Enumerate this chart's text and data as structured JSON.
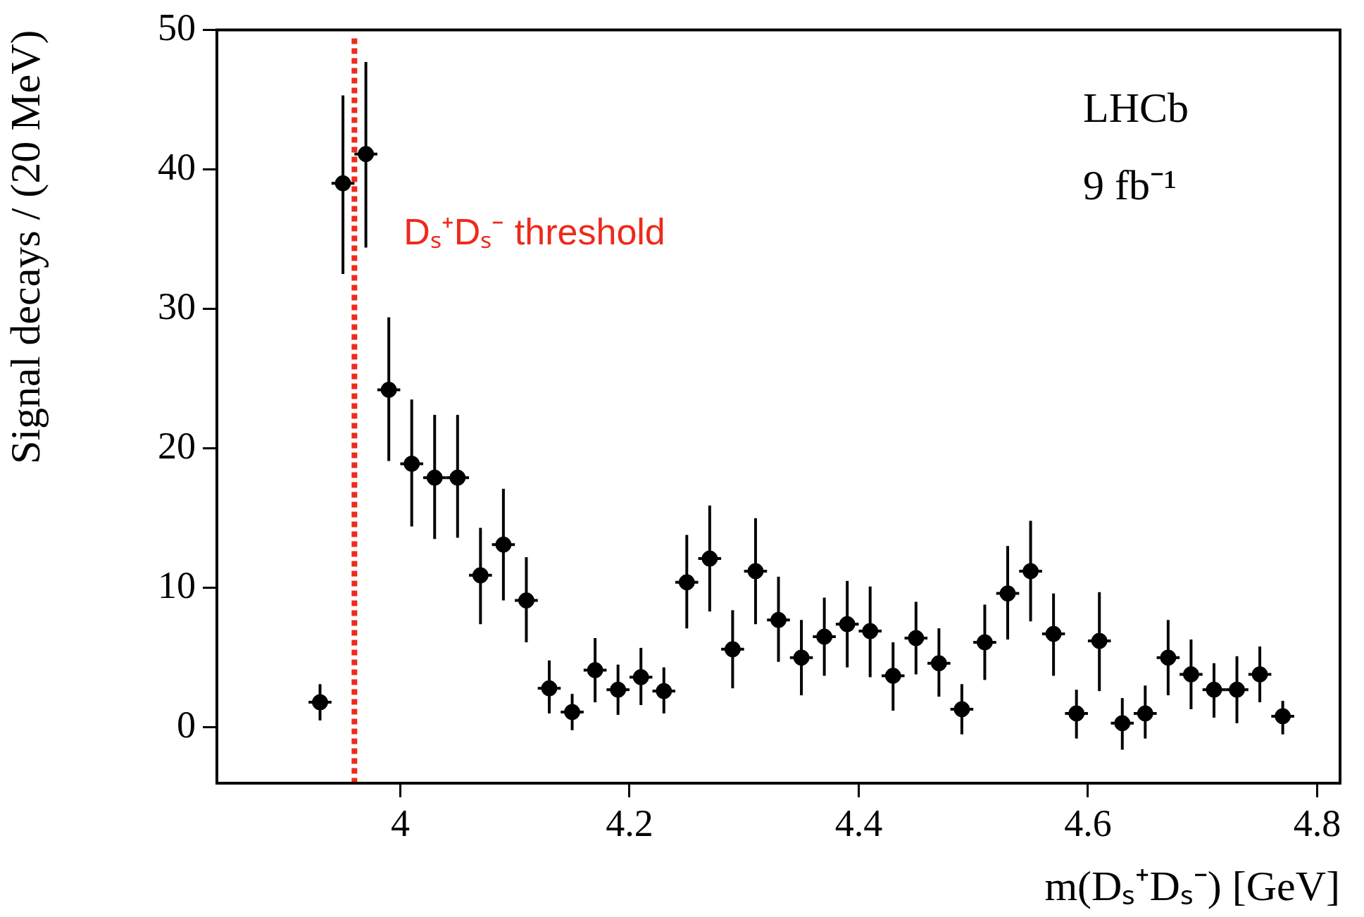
{
  "chart_data": {
    "type": "scatter",
    "xlabel": "m(Dₛ⁺Dₛ⁻) [GeV]",
    "ylabel": "Signal decays / (20 MeV)",
    "annotations": [
      "LHCb",
      "9 fb⁻¹"
    ],
    "x": [
      3.93,
      3.95,
      3.97,
      3.99,
      4.01,
      4.03,
      4.05,
      4.07,
      4.09,
      4.11,
      4.13,
      4.15,
      4.17,
      4.19,
      4.21,
      4.23,
      4.25,
      4.27,
      4.29,
      4.31,
      4.33,
      4.35,
      4.37,
      4.39,
      4.41,
      4.43,
      4.45,
      4.47,
      4.49,
      4.51,
      4.53,
      4.55,
      4.57,
      4.59,
      4.61,
      4.63,
      4.65,
      4.67,
      4.69,
      4.71,
      4.73,
      4.75,
      4.77
    ],
    "values": [
      1.8,
      39,
      41.1,
      24.2,
      18.9,
      17.9,
      17.9,
      10.9,
      13.1,
      9.1,
      2.8,
      1.1,
      4.1,
      2.7,
      3.6,
      2.6,
      10.4,
      12.1,
      5.6,
      11.2,
      7.7,
      5.0,
      6.5,
      7.4,
      6.9,
      3.7,
      6.4,
      4.6,
      1.3,
      6.1,
      9.6,
      11.2,
      6.7,
      1.0,
      6.2,
      0.3,
      1.0,
      5.0,
      3.8,
      2.7,
      2.7,
      3.8,
      0.8
    ],
    "errors": [
      [
        0.5,
        3.1
      ],
      [
        32.5,
        45.3
      ],
      [
        34.4,
        47.7
      ],
      [
        19.1,
        29.4
      ],
      [
        14.4,
        23.5
      ],
      [
        13.5,
        22.4
      ],
      [
        13.6,
        22.4
      ],
      [
        7.4,
        14.3
      ],
      [
        9.1,
        17.1
      ],
      [
        6.1,
        12.2
      ],
      [
        1.0,
        4.8
      ],
      [
        -0.2,
        2.4
      ],
      [
        1.8,
        6.4
      ],
      [
        0.9,
        4.5
      ],
      [
        1.6,
        5.7
      ],
      [
        1.0,
        4.3
      ],
      [
        7.1,
        13.8
      ],
      [
        8.3,
        15.9
      ],
      [
        2.8,
        8.4
      ],
      [
        7.4,
        15.0
      ],
      [
        4.7,
        10.8
      ],
      [
        2.3,
        7.7
      ],
      [
        3.7,
        9.3
      ],
      [
        4.3,
        10.5
      ],
      [
        3.6,
        10.1
      ],
      [
        1.2,
        6.1
      ],
      [
        3.8,
        9.0
      ],
      [
        2.2,
        7.1
      ],
      [
        -0.5,
        3.1
      ],
      [
        3.4,
        8.8
      ],
      [
        6.3,
        13.0
      ],
      [
        7.6,
        14.8
      ],
      [
        3.7,
        9.6
      ],
      [
        -0.8,
        2.7
      ],
      [
        2.6,
        9.7
      ],
      [
        -1.6,
        2.1
      ],
      [
        -0.8,
        3.0
      ],
      [
        2.3,
        7.7
      ],
      [
        1.3,
        6.3
      ],
      [
        0.7,
        4.6
      ],
      [
        0.3,
        5.1
      ],
      [
        1.8,
        5.8
      ],
      [
        -0.5,
        1.9
      ]
    ],
    "xerrors": [
      0.01,
      0.01,
      0.01,
      0.01,
      0.01,
      0.01,
      0.01,
      0.01,
      0.01,
      0.01,
      0.01,
      0.01,
      0.01,
      0.01,
      0.01,
      0.01,
      0.01,
      0.01,
      0.01,
      0.01,
      0.01,
      0.01,
      0.01,
      0.01,
      0.01,
      0.01,
      0.01,
      0.01,
      0.01,
      0.01,
      0.01,
      0.01,
      0.01,
      0.01,
      0.01,
      0.01,
      0.01,
      0.01,
      0.01,
      0.01,
      0.01,
      0.01,
      0.01
    ],
    "color": "#000000",
    "marker": "circle",
    "legend": false,
    "grid": false,
    "xlim": [
      3.84,
      4.82
    ],
    "xticks": [
      4,
      4.2,
      4.4,
      4.6,
      4.8
    ],
    "ylim": [
      -4,
      50
    ],
    "yticks": [
      0,
      10,
      20,
      30,
      40,
      50
    ],
    "ref_lines": [
      {
        "axis": "x",
        "value": 3.96,
        "label": "Dₛ⁺Dₛ⁻ threshold",
        "color": "#ee2a1b",
        "line_style": "dotted"
      }
    ]
  }
}
